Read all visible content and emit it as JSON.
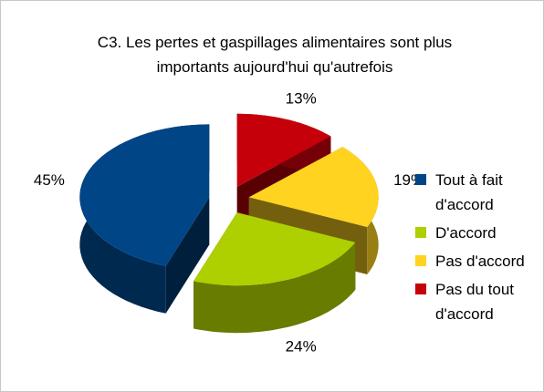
{
  "chart_data": {
    "type": "pie",
    "title": "C3. Les pertes et gaspillages alimentaires sont plus importants aujourd'hui qu'autrefois",
    "categories": [
      "Tout à fait d'accord",
      "D'accord",
      "Pas d'accord",
      "Pas du tout d'accord"
    ],
    "values": [
      45,
      24,
      19,
      13
    ],
    "value_labels": [
      "45%",
      "24%",
      "19%",
      "13%"
    ],
    "colors": [
      "#004586",
      "#aecf00",
      "#ffd320",
      "#c5000b"
    ],
    "legend": "right"
  }
}
